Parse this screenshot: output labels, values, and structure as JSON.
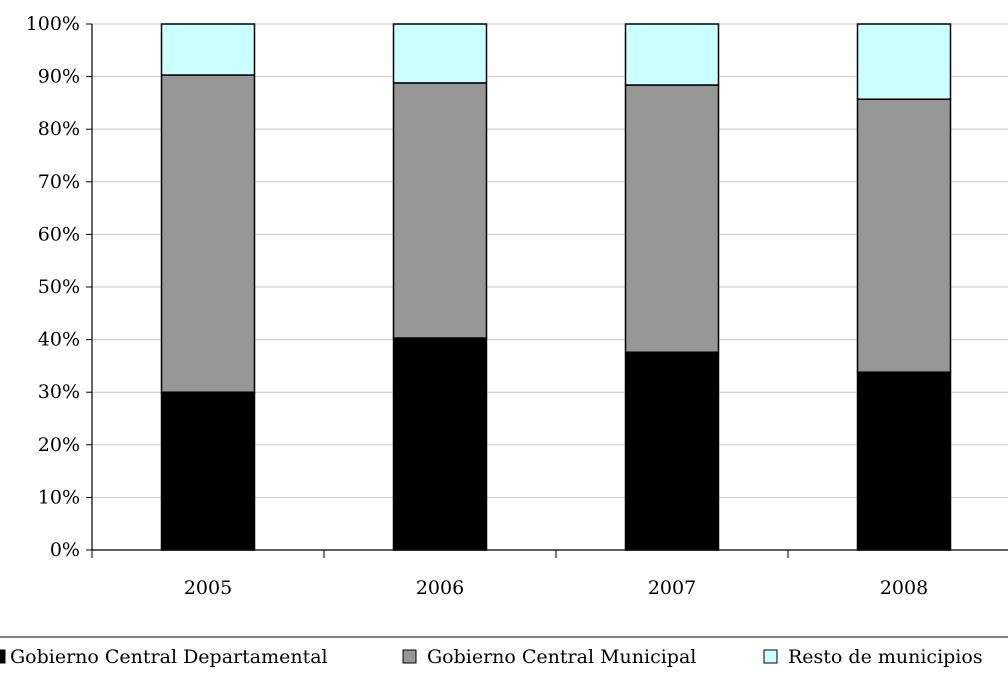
{
  "chart_data": {
    "type": "bar",
    "stacking": "percent",
    "categories": [
      "2005",
      "2006",
      "2007",
      "2008"
    ],
    "series": [
      {
        "name": "Gobierno Central Departamental",
        "color": "#000000",
        "values": [
          30,
          40.3,
          37.6,
          33.8
        ]
      },
      {
        "name": "Gobierno Central Municipal",
        "color": "#969696",
        "values": [
          60.3,
          48.5,
          50.8,
          51.9
        ]
      },
      {
        "name": "Resto de municipios",
        "color": "#ccffff",
        "values": [
          9.7,
          11.2,
          11.6,
          14.3
        ]
      }
    ],
    "y_ticks": [
      "0%",
      "10%",
      "20%",
      "30%",
      "40%",
      "50%",
      "60%",
      "70%",
      "80%",
      "90%",
      "100%"
    ],
    "ylim": [
      0,
      100
    ],
    "grid": true,
    "legend_position": "bottom",
    "title": "",
    "xlabel": "",
    "ylabel": ""
  }
}
